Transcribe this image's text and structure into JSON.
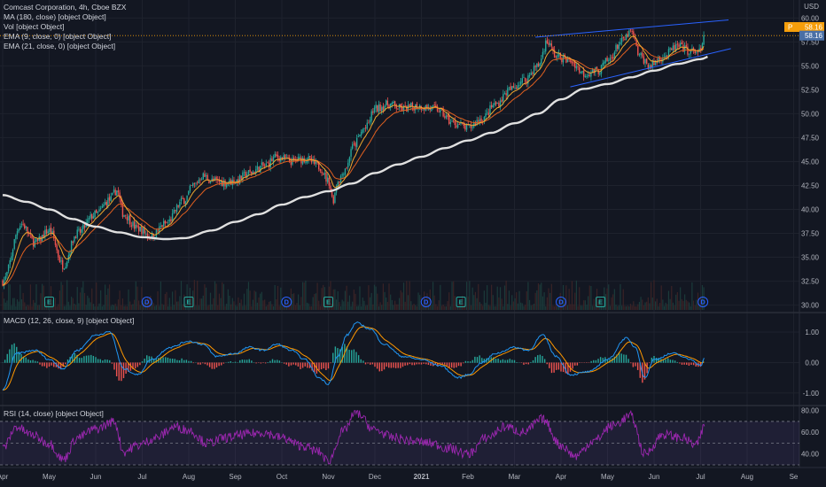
{
  "header": {
    "symbol_line": "Comcast Corporation, 4h, Cboe BZX",
    "ma_line": "MA (180, close) [object Object]",
    "vol_line": "Vol [object Object]",
    "ema9_line": "EMA (9, close, 0) [object Object]",
    "ema21_line": "EMA (21, close, 0) [object Object]"
  },
  "panes": {
    "macd_title": "MACD (12, 26, close, 9) [object Object]",
    "rsi_title": "RSI (14, close) [object Object]"
  },
  "price_axis": {
    "currency": "USD",
    "ticks": [
      "60.00",
      "57.50",
      "55.00",
      "52.50",
      "50.00",
      "47.50",
      "45.00",
      "42.50",
      "40.00",
      "37.50",
      "35.00",
      "32.50",
      "30.00"
    ],
    "price_tag": "58.16",
    "ref_tag": "58.16",
    "ref_tag_prefix": "P"
  },
  "macd_axis": {
    "ticks": [
      "1.00",
      "0.00",
      "-1.00"
    ]
  },
  "rsi_axis": {
    "ticks": [
      "80.00",
      "60.00",
      "40.00"
    ]
  },
  "time_axis": {
    "months": [
      "Apr",
      "May",
      "Jun",
      "Jul",
      "Aug",
      "Sep",
      "Oct",
      "Nov",
      "Dec",
      "2021",
      "Feb",
      "Mar",
      "Apr",
      "May",
      "Jun",
      "Jul",
      "Aug",
      "Se"
    ]
  },
  "events": [
    {
      "label": "E",
      "t": 1.0
    },
    {
      "label": "D",
      "t": 3.1
    },
    {
      "label": "E",
      "t": 4.0
    },
    {
      "label": "D",
      "t": 6.1
    },
    {
      "label": "E",
      "t": 7.0
    },
    {
      "label": "D",
      "t": 9.1
    },
    {
      "label": "E",
      "t": 9.85
    },
    {
      "label": "D",
      "t": 12.0
    },
    {
      "label": "E",
      "t": 12.85
    },
    {
      "label": "D",
      "t": 15.05
    }
  ],
  "colors": {
    "background": "#131722",
    "grid": "#1e222d",
    "candle_up": "#26a69a",
    "candle_down": "#ef5350",
    "ma": "#e0e0e0",
    "ema9": "#f0a830",
    "ema21": "#e06020",
    "trendline": "#2962ff",
    "macd_line": "#2196f3",
    "signal_line": "#ff9800",
    "rsi_line": "#9c27b0",
    "rsi_band": "#7e57c2",
    "price_tag": "#f59e0b",
    "ref_tag": "#4a6fa5",
    "event_earnings": "#26a69a",
    "event_dividend": "#2962ff"
  },
  "chart_data": {
    "type": "candlestick",
    "timeframe": "4h",
    "x_range": [
      "Apr 2020",
      "Sep 2021"
    ],
    "price_ylim": [
      29.5,
      60.4
    ],
    "price_anchors": [
      [
        0.0,
        32.5
      ],
      [
        0.4,
        38.5
      ],
      [
        0.7,
        36.5
      ],
      [
        1.0,
        37.8
      ],
      [
        1.3,
        34.2
      ],
      [
        1.6,
        37.5
      ],
      [
        2.0,
        39.5
      ],
      [
        2.3,
        41.0
      ],
      [
        2.45,
        42.0
      ],
      [
        2.6,
        39.5
      ],
      [
        2.9,
        38.0
      ],
      [
        3.2,
        37.2
      ],
      [
        3.5,
        38.5
      ],
      [
        3.9,
        41.0
      ],
      [
        4.1,
        42.5
      ],
      [
        4.3,
        43.5
      ],
      [
        4.5,
        43.0
      ],
      [
        4.8,
        42.8
      ],
      [
        5.0,
        43.0
      ],
      [
        5.3,
        43.8
      ],
      [
        5.6,
        44.5
      ],
      [
        5.9,
        45.5
      ],
      [
        6.2,
        45.0
      ],
      [
        6.5,
        45.3
      ],
      [
        6.8,
        44.5
      ],
      [
        7.0,
        43.0
      ],
      [
        7.1,
        41.0
      ],
      [
        7.2,
        43.0
      ],
      [
        7.4,
        44.5
      ],
      [
        7.5,
        46.5
      ],
      [
        7.8,
        48.5
      ],
      [
        8.0,
        50.5
      ],
      [
        8.3,
        51.0
      ],
      [
        8.6,
        50.5
      ],
      [
        8.9,
        50.8
      ],
      [
        9.3,
        50.5
      ],
      [
        9.7,
        49.0
      ],
      [
        10.0,
        48.5
      ],
      [
        10.3,
        49.5
      ],
      [
        10.6,
        51.0
      ],
      [
        10.9,
        52.5
      ],
      [
        11.2,
        53.5
      ],
      [
        11.5,
        55.0
      ],
      [
        11.7,
        57.5
      ],
      [
        11.9,
        56.0
      ],
      [
        12.2,
        55.5
      ],
      [
        12.5,
        54.2
      ],
      [
        12.8,
        54.5
      ],
      [
        13.0,
        55.5
      ],
      [
        13.3,
        57.5
      ],
      [
        13.5,
        58.5
      ],
      [
        13.7,
        56.0
      ],
      [
        13.9,
        55.0
      ],
      [
        14.2,
        56.0
      ],
      [
        14.5,
        57.0
      ],
      [
        14.8,
        56.5
      ],
      [
        15.0,
        56.5
      ],
      [
        15.1,
        58.2
      ]
    ],
    "ma180_anchors": [
      [
        0.0,
        41.5
      ],
      [
        0.5,
        40.8
      ],
      [
        1.0,
        40.0
      ],
      [
        1.5,
        39.0
      ],
      [
        2.0,
        38.2
      ],
      [
        2.5,
        37.6
      ],
      [
        3.0,
        37.1
      ],
      [
        3.5,
        36.9
      ],
      [
        3.9,
        37.0
      ],
      [
        4.5,
        37.8
      ],
      [
        5.0,
        38.7
      ],
      [
        5.5,
        39.5
      ],
      [
        6.0,
        40.5
      ],
      [
        6.5,
        41.3
      ],
      [
        7.0,
        41.9
      ],
      [
        7.5,
        42.7
      ],
      [
        8.0,
        43.8
      ],
      [
        8.5,
        44.7
      ],
      [
        9.0,
        45.5
      ],
      [
        9.5,
        46.4
      ],
      [
        10.0,
        47.2
      ],
      [
        10.5,
        48.0
      ],
      [
        11.0,
        49.0
      ],
      [
        11.5,
        50.0
      ],
      [
        12.0,
        51.5
      ],
      [
        12.5,
        52.6
      ],
      [
        13.0,
        53.1
      ],
      [
        13.5,
        53.8
      ],
      [
        14.0,
        54.5
      ],
      [
        14.5,
        55.2
      ],
      [
        15.0,
        55.7
      ],
      [
        15.2,
        56.0
      ]
    ],
    "trendlines": [
      {
        "from": [
          11.45,
          58.0
        ],
        "to": [
          15.6,
          59.8
        ]
      },
      {
        "from": [
          12.2,
          52.8
        ],
        "to": [
          15.65,
          56.8
        ]
      }
    ],
    "macd_ylim": [
      -1.35,
      1.55
    ],
    "macd_anchors": [
      [
        0.0,
        -0.9
      ],
      [
        0.3,
        0.3
      ],
      [
        0.7,
        0.4
      ],
      [
        1.0,
        0.1
      ],
      [
        1.3,
        -0.2
      ],
      [
        1.6,
        0.4
      ],
      [
        2.0,
        0.9
      ],
      [
        2.3,
        1.0
      ],
      [
        2.6,
        -0.2
      ],
      [
        2.9,
        -0.4
      ],
      [
        3.2,
        0.1
      ],
      [
        3.6,
        0.5
      ],
      [
        4.0,
        0.7
      ],
      [
        4.3,
        0.6
      ],
      [
        4.6,
        0.2
      ],
      [
        5.0,
        0.3
      ],
      [
        5.3,
        0.5
      ],
      [
        5.6,
        0.4
      ],
      [
        5.9,
        0.6
      ],
      [
        6.2,
        0.4
      ],
      [
        6.5,
        0.1
      ],
      [
        6.8,
        -0.5
      ],
      [
        7.0,
        -0.7
      ],
      [
        7.2,
        0.2
      ],
      [
        7.4,
        0.9
      ],
      [
        7.6,
        1.3
      ],
      [
        7.9,
        1.1
      ],
      [
        8.2,
        0.6
      ],
      [
        8.6,
        0.2
      ],
      [
        9.0,
        0.1
      ],
      [
        9.4,
        -0.1
      ],
      [
        9.8,
        -0.5
      ],
      [
        10.0,
        -0.4
      ],
      [
        10.3,
        0.0
      ],
      [
        10.6,
        0.3
      ],
      [
        11.0,
        0.5
      ],
      [
        11.3,
        0.4
      ],
      [
        11.6,
        0.9
      ],
      [
        11.9,
        0.2
      ],
      [
        12.2,
        -0.4
      ],
      [
        12.6,
        -0.3
      ],
      [
        13.0,
        0.1
      ],
      [
        13.4,
        0.8
      ],
      [
        13.6,
        0.5
      ],
      [
        13.8,
        -0.5
      ],
      [
        14.0,
        0.1
      ],
      [
        14.4,
        0.3
      ],
      [
        14.8,
        0.1
      ],
      [
        15.0,
        -0.1
      ],
      [
        15.1,
        0.2
      ]
    ],
    "rsi_ylim": [
      30,
      83
    ],
    "rsi_bands": {
      "upper": 70,
      "middle": 50,
      "lower": 30
    },
    "rsi_anchors": [
      [
        0.0,
        45
      ],
      [
        0.3,
        65
      ],
      [
        0.6,
        58
      ],
      [
        1.0,
        50
      ],
      [
        1.3,
        35
      ],
      [
        1.6,
        55
      ],
      [
        2.0,
        63
      ],
      [
        2.4,
        70
      ],
      [
        2.6,
        42
      ],
      [
        2.9,
        48
      ],
      [
        3.3,
        55
      ],
      [
        3.7,
        65
      ],
      [
        4.0,
        62
      ],
      [
        4.4,
        50
      ],
      [
        4.8,
        55
      ],
      [
        5.2,
        58
      ],
      [
        5.6,
        60
      ],
      [
        6.0,
        55
      ],
      [
        6.4,
        48
      ],
      [
        6.8,
        42
      ],
      [
        7.0,
        33
      ],
      [
        7.3,
        60
      ],
      [
        7.6,
        78
      ],
      [
        8.0,
        62
      ],
      [
        8.4,
        55
      ],
      [
        8.8,
        52
      ],
      [
        9.2,
        50
      ],
      [
        9.6,
        45
      ],
      [
        10.0,
        40
      ],
      [
        10.4,
        55
      ],
      [
        10.8,
        65
      ],
      [
        11.2,
        60
      ],
      [
        11.6,
        72
      ],
      [
        12.0,
        48
      ],
      [
        12.3,
        38
      ],
      [
        12.7,
        52
      ],
      [
        13.1,
        66
      ],
      [
        13.5,
        75
      ],
      [
        13.8,
        40
      ],
      [
        14.2,
        58
      ],
      [
        14.6,
        55
      ],
      [
        14.9,
        48
      ],
      [
        15.1,
        66
      ]
    ]
  }
}
